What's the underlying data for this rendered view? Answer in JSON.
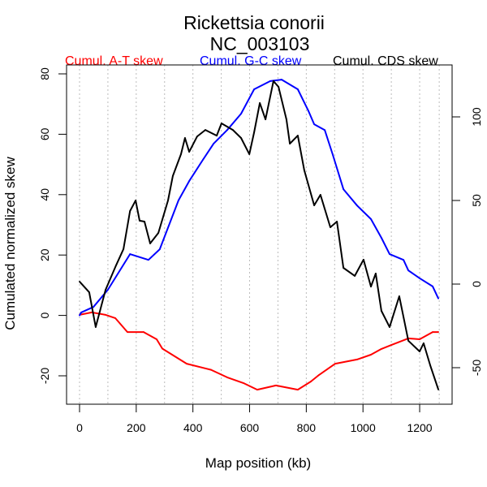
{
  "chart_data": {
    "type": "line",
    "title": "Rickettsia conorii",
    "subtitle": "NC_003103",
    "xlabel": "Map position (kb)",
    "ylabel": "Cumulated normalized skew",
    "xlim": [
      -45,
      1320
    ],
    "ylim": [
      -29,
      83
    ],
    "y2lim": [
      -72,
      131
    ],
    "grid": "vertical dotted every 100 kb",
    "xticks": [
      0,
      200,
      400,
      600,
      800,
      1000,
      1200
    ],
    "xtick_labels": [
      "0",
      "200",
      "400",
      "600",
      "800",
      "1000",
      "1200"
    ],
    "yticks": [
      -20,
      0,
      20,
      40,
      60,
      80
    ],
    "ytick_labels": [
      "-20",
      "0",
      "20",
      "40",
      "60",
      "80"
    ],
    "y2ticks": [
      -50,
      0,
      50,
      100
    ],
    "y2tick_labels": [
      "-50",
      "0",
      "50",
      "100"
    ],
    "legend_placement": "top, above plot",
    "series": [
      {
        "name": "Cumul. A-T skew",
        "color": "#ff0000",
        "axis": "left",
        "x": [
          0,
          43,
          92,
          126,
          169,
          226,
          272,
          292,
          378,
          464,
          521,
          578,
          627,
          693,
          770,
          816,
          845,
          902,
          979,
          1028,
          1065,
          1100,
          1160,
          1200,
          1246,
          1266
        ],
        "y": [
          0.2,
          1.0,
          0.2,
          -0.9,
          -5.5,
          -5.5,
          -7.9,
          -11,
          -16,
          -18,
          -20.5,
          -22.4,
          -24.6,
          -23.2,
          -24.6,
          -21.9,
          -19.7,
          -16.0,
          -14.6,
          -13.0,
          -11.1,
          -9.8,
          -7.6,
          -7.9,
          -5.5,
          -5.5
        ]
      },
      {
        "name": "Cumul. G-C skew",
        "color": "#0000ff",
        "axis": "left",
        "x": [
          0,
          6,
          49,
          100,
          178,
          243,
          283,
          349,
          387,
          435,
          473,
          521,
          570,
          616,
          673,
          713,
          770,
          808,
          828,
          865,
          893,
          931,
          979,
          1028,
          1065,
          1094,
          1143,
          1160,
          1200,
          1246,
          1266
        ],
        "y": [
          0,
          1.0,
          2.8,
          8.5,
          20.3,
          18.4,
          21.9,
          38.1,
          44.5,
          51.5,
          56.9,
          61.4,
          66.8,
          74.9,
          77.6,
          78.1,
          74.9,
          67.6,
          63.3,
          61.4,
          53.4,
          41.8,
          36.4,
          31.9,
          25.7,
          20.3,
          18.4,
          14.9,
          12.3,
          9.6,
          5.6
        ]
      },
      {
        "name": "Cumul. CDS skew",
        "color": "#000000",
        "axis": "right",
        "x": [
          0,
          34,
          57,
          92,
          129,
          155,
          178,
          198,
          212,
          229,
          249,
          278,
          312,
          329,
          358,
          372,
          387,
          415,
          444,
          484,
          501,
          541,
          570,
          599,
          616,
          636,
          656,
          684,
          702,
          730,
          742,
          770,
          793,
          828,
          850,
          885,
          908,
          931,
          971,
          1002,
          1028,
          1045,
          1065,
          1094,
          1128,
          1160,
          1200,
          1214,
          1237,
          1266
        ],
        "y": [
          1.5,
          -4.9,
          -25.7,
          -3.4,
          11.2,
          20.9,
          43.7,
          50,
          37.9,
          37.4,
          24.3,
          30.6,
          50,
          64.6,
          77.7,
          87.4,
          79.1,
          88.3,
          92.2,
          88.8,
          96.1,
          92.2,
          87.4,
          77.7,
          90.8,
          108.3,
          98.5,
          121.4,
          118,
          98.5,
          84,
          88.8,
          68,
          47.1,
          53.4,
          34,
          37.4,
          9.7,
          4.9,
          14.6,
          -1.5,
          6.3,
          -16,
          -25.7,
          -7.3,
          -33.9,
          -40.3,
          -35.4,
          -48.5,
          -63.1
        ]
      }
    ]
  }
}
